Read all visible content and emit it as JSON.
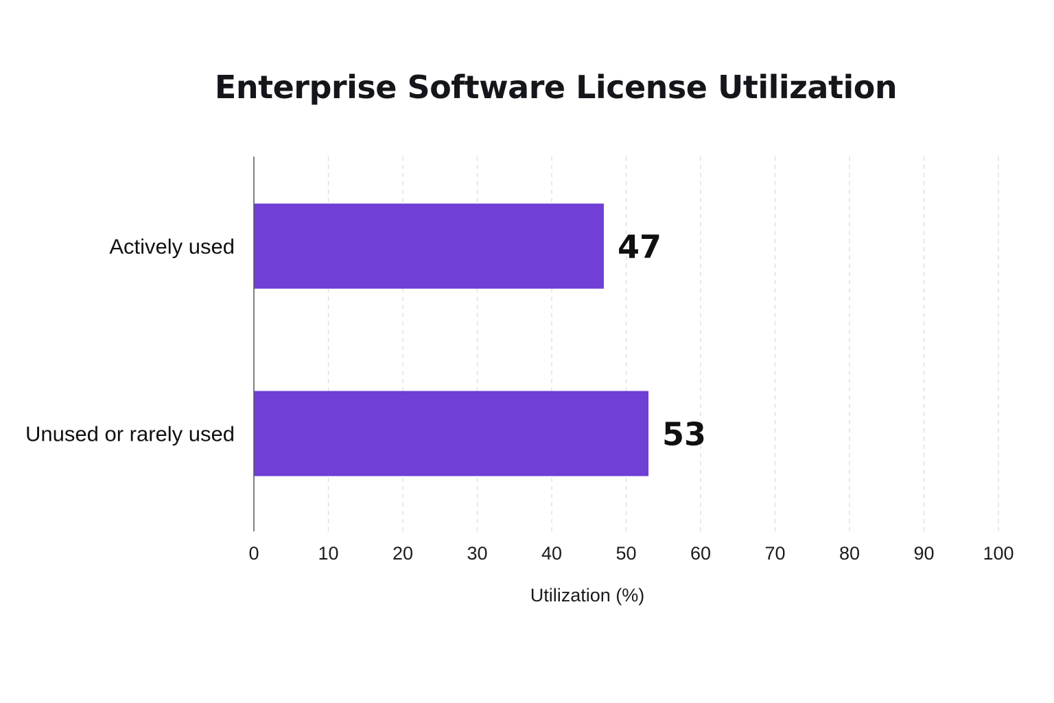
{
  "chart_data": {
    "type": "bar",
    "orientation": "horizontal",
    "title": "Enterprise Software License Utilization",
    "categories": [
      "Actively used",
      "Unused or rarely used"
    ],
    "values": [
      47,
      53
    ],
    "value_labels": [
      "47",
      "53"
    ],
    "xlabel": "Utilization (%)",
    "ylabel": "",
    "xlim": [
      0,
      100
    ],
    "x_ticks": [
      0,
      10,
      20,
      30,
      40,
      50,
      60,
      70,
      80,
      90,
      100
    ],
    "x_tick_labels": [
      "0",
      "10",
      "20",
      "30",
      "40",
      "50",
      "60",
      "70",
      "80",
      "90",
      "100"
    ],
    "grid": "vertical dashed",
    "legend": "none",
    "bar_color": "#6f3fd6"
  }
}
